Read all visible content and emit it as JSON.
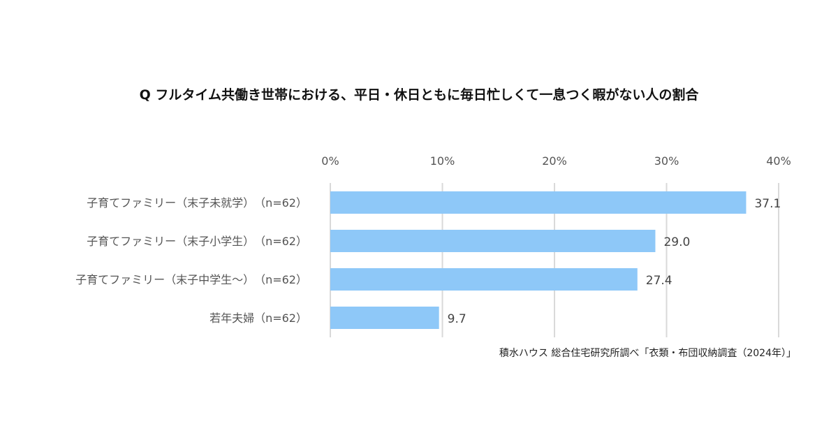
{
  "chart_data": {
    "type": "bar",
    "orientation": "horizontal",
    "title": "Q フルタイム共働き世帯における、平日・休日ともに毎日忙しくて一息つく暇がない人の割合",
    "categories": [
      "子育てファミリー（末子未就学）　（n=62）",
      "子育てファミリー（末子小学生）　（n=62）",
      "子育てファミリー（末子中学生～）　（n=62）",
      "若年夫婦（n=62）"
    ],
    "values": [
      37.1,
      29.0,
      27.4,
      9.7
    ],
    "value_labels": [
      "37.1",
      "29.0",
      "27.4",
      "9.7"
    ],
    "xlim": [
      0,
      40
    ],
    "x_ticks": [
      "0%",
      "10%",
      "20%",
      "30%",
      "40%"
    ],
    "x_tick_values": [
      0,
      10,
      20,
      30,
      40
    ],
    "x_axis_position": "top",
    "grid": true,
    "bar_color": "#8ec8f8",
    "source": "積水ハウス 総合住宅研究所調べ「衣類・布団収納調査（2024年）」"
  }
}
